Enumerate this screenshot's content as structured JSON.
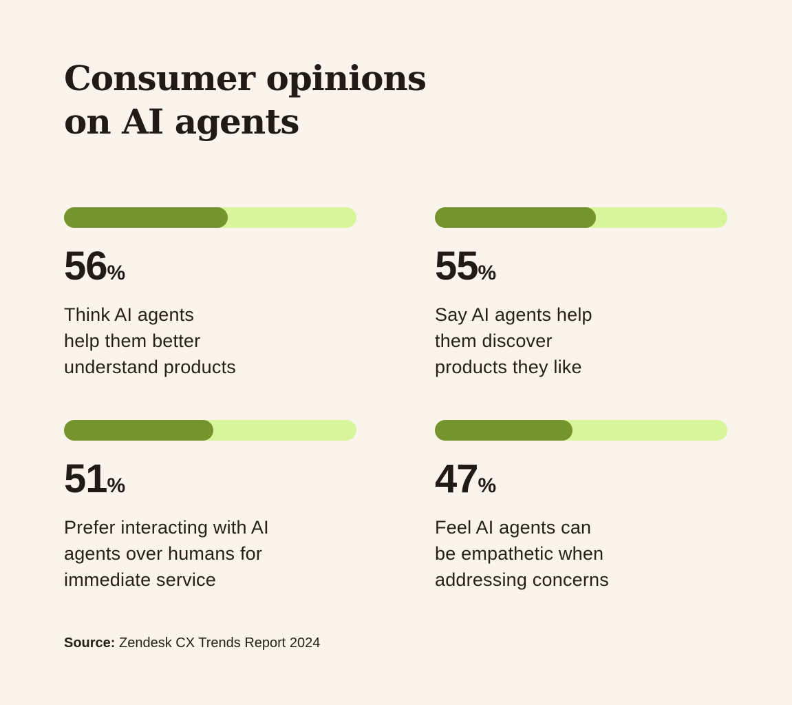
{
  "page": {
    "title": "Consumer opinions\non AI agents",
    "source_label": "Source:",
    "source_text": "Zendesk CX Trends Report 2024"
  },
  "chart_data": {
    "type": "bar",
    "orientation": "horizontal",
    "layout": "2x2-grid of stat progress bars",
    "title": "Consumer opinions on AI agents",
    "unit": "%",
    "value_range": [
      0,
      100
    ],
    "categories": [
      "Think AI agents\nhelp them better\nunderstand products",
      "Say AI agents help\nthem discover\nproducts they like",
      "Prefer interacting with AI\nagents over humans for\nimmediate service",
      "Feel AI agents can\nbe empathetic when\naddressing concerns"
    ],
    "values": [
      56,
      55,
      51,
      47
    ],
    "source": "Zendesk CX Trends Report 2024",
    "colors": {
      "bar_fill": "#75942E",
      "bar_track": "#D9F59B",
      "background": "#FAF5EC",
      "title_text": "#201C15",
      "body_text": "#262117"
    }
  }
}
